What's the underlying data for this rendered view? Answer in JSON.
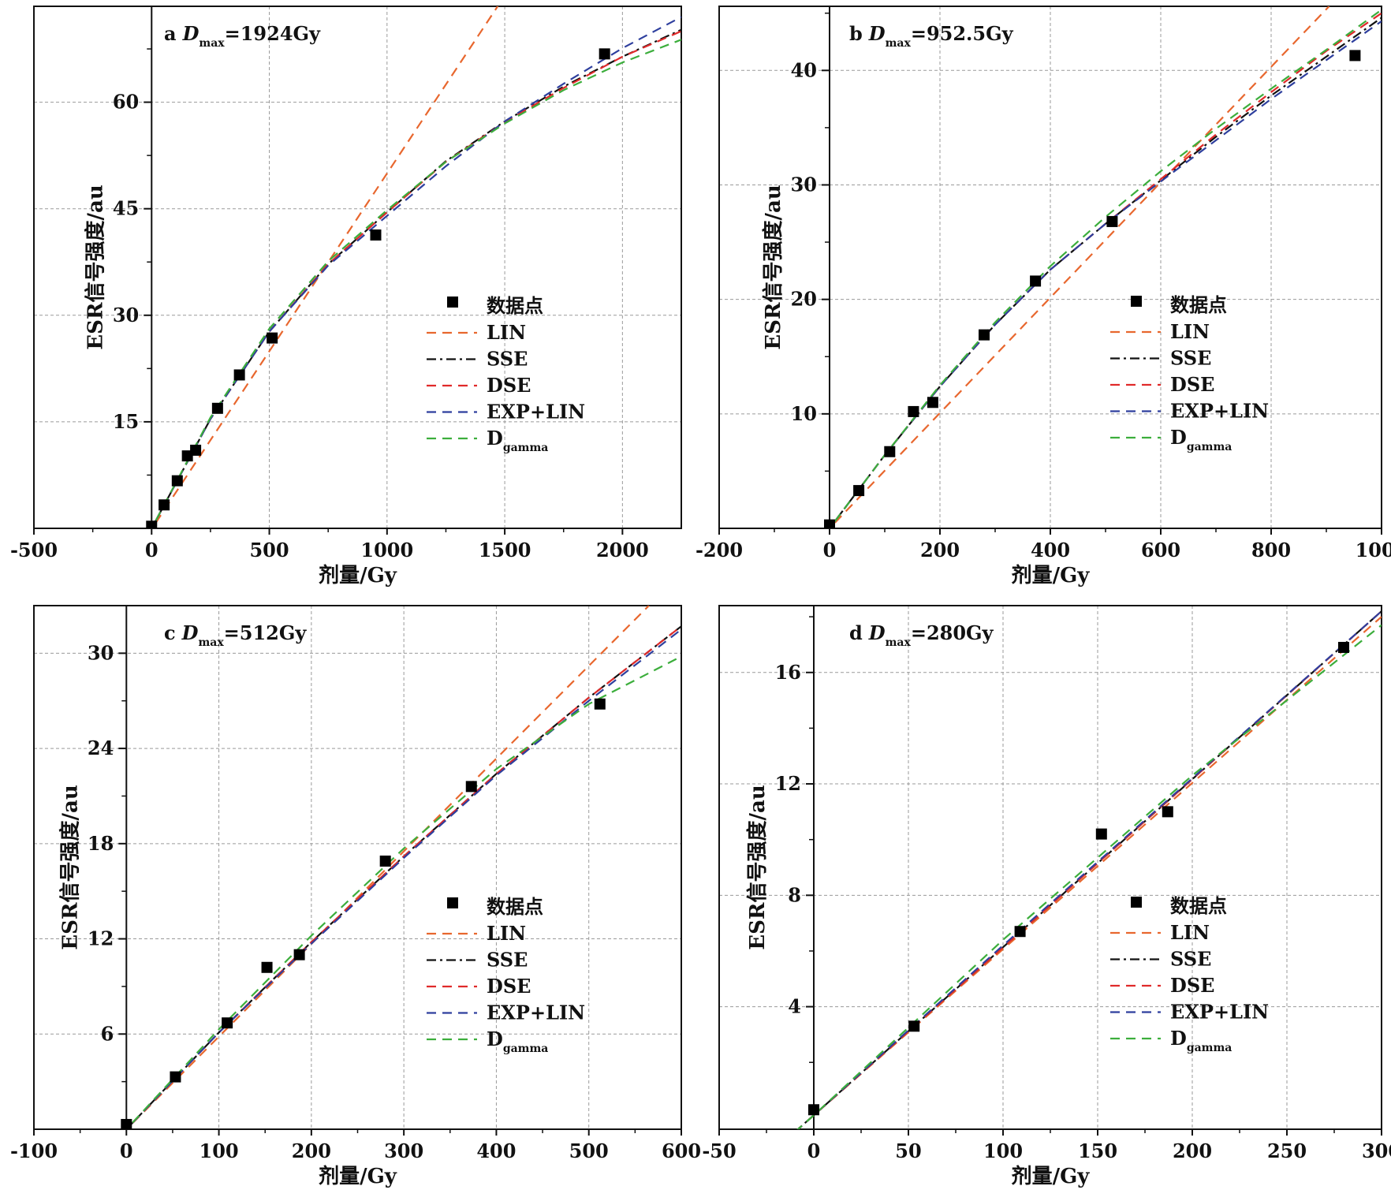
{
  "figure": {
    "series_styles": {
      "LIN": {
        "color": "#e8672e",
        "dash": "12,8"
      },
      "SSE": {
        "color": "#111111",
        "dash": "12,5,3,5"
      },
      "DSE": {
        "color": "#e02a2a",
        "dash": "12,8"
      },
      "EXP+LIN": {
        "color": "#2e3f9e",
        "dash": "12,8"
      },
      "Dgamma": {
        "color": "#3cae3c",
        "dash": "12,8"
      }
    }
  },
  "chart_data": [
    {
      "type": "scatter",
      "panel_letter": "a",
      "title_var": "D",
      "title_sub": "max",
      "title_value": "=1924Gy",
      "xlabel": "剂量/Gy",
      "ylabel": "ESR信号强度/au",
      "xlim": [
        -500,
        2250
      ],
      "ylim": [
        0,
        73.5
      ],
      "xticks": [
        -500,
        0,
        500,
        1000,
        1500,
        2000
      ],
      "yticks": [
        15,
        30,
        45,
        60
      ],
      "grid": true,
      "legend_position": "center-right",
      "legend": {
        "points_label": "数据点",
        "entries": [
          "LIN",
          "SSE",
          "DSE",
          "EXP+LIN",
          "D"
        ],
        "last_sub": "gamma"
      },
      "points": {
        "x": [
          0,
          53,
          109,
          152,
          187,
          280,
          373,
          512,
          952,
          1924
        ],
        "y": [
          0.3,
          3.3,
          6.7,
          10.2,
          11.0,
          16.9,
          21.6,
          26.8,
          41.3,
          66.8
        ]
      },
      "series": [
        {
          "name": "LIN",
          "x": [
            -20,
            1480
          ],
          "y": [
            -1.1,
            74
          ]
        },
        {
          "name": "SSE",
          "x": [
            -15,
            0,
            250,
            500,
            750,
            1000,
            1250,
            1500,
            1750,
            2000,
            2250
          ],
          "y": [
            -0.8,
            0,
            15.4,
            27.7,
            37.2,
            44.5,
            51.7,
            57.3,
            62.2,
            66.4,
            70.2
          ]
        },
        {
          "name": "DSE",
          "x": [
            -15,
            0,
            250,
            500,
            750,
            1000,
            1250,
            1500,
            1750,
            2000,
            2250
          ],
          "y": [
            -0.8,
            0,
            15.4,
            27.7,
            37.2,
            44.5,
            51.6,
            57.2,
            62.0,
            66.4,
            70.0
          ]
        },
        {
          "name": "EXP+LIN",
          "x": [
            -15,
            0,
            250,
            500,
            750,
            1000,
            1250,
            1500,
            1750,
            2000,
            2250
          ],
          "y": [
            -0.8,
            0,
            15.4,
            27.7,
            37.0,
            44.0,
            51.0,
            57.3,
            62.6,
            67.6,
            72.0
          ]
        },
        {
          "name": "Dgamma",
          "x": [
            -15,
            0,
            250,
            500,
            750,
            1000,
            1250,
            1500,
            1750,
            2000,
            2250
          ],
          "y": [
            -0.8,
            0,
            15.6,
            28.1,
            37.6,
            44.8,
            51.6,
            57.0,
            61.7,
            65.6,
            68.8
          ]
        }
      ]
    },
    {
      "type": "scatter",
      "panel_letter": "b",
      "title_var": "D",
      "title_sub": "max",
      "title_value": "=952.5Gy",
      "xlabel": "剂量/Gy",
      "ylabel": "ESR信号强度/au",
      "xlim": [
        -200,
        1000
      ],
      "ylim": [
        0,
        45.6
      ],
      "xticks": [
        -200,
        0,
        200,
        400,
        600,
        800,
        1000
      ],
      "yticks": [
        10,
        20,
        30,
        40
      ],
      "grid": true,
      "legend_position": "center-right",
      "legend": {
        "points_label": "数据点",
        "entries": [
          "LIN",
          "SSE",
          "DSE",
          "EXP+LIN",
          "D"
        ],
        "last_sub": "gamma"
      },
      "points": {
        "x": [
          0,
          53,
          109,
          152,
          187,
          280,
          373,
          512,
          952
        ],
        "y": [
          0.3,
          3.3,
          6.7,
          10.2,
          11.0,
          16.9,
          21.6,
          26.8,
          41.3
        ]
      },
      "series": [
        {
          "name": "LIN",
          "x": [
            -10,
            905
          ],
          "y": [
            -0.5,
            45.6
          ]
        },
        {
          "name": "SSE",
          "x": [
            -8,
            0,
            100,
            200,
            300,
            400,
            500,
            600,
            700,
            800,
            900,
            1000
          ],
          "y": [
            -0.5,
            0,
            6.4,
            12.4,
            17.8,
            22.6,
            26.6,
            30.4,
            34.2,
            37.8,
            41.2,
            44.6
          ]
        },
        {
          "name": "DSE",
          "x": [
            -8,
            0,
            100,
            200,
            300,
            400,
            500,
            600,
            700,
            800,
            900,
            1000
          ],
          "y": [
            -0.5,
            0,
            6.4,
            12.4,
            17.8,
            22.6,
            26.6,
            30.5,
            34.4,
            38.1,
            41.7,
            45.0
          ]
        },
        {
          "name": "EXP+LIN",
          "x": [
            -8,
            0,
            100,
            200,
            300,
            400,
            500,
            600,
            700,
            800,
            900,
            1000
          ],
          "y": [
            -0.5,
            0,
            6.4,
            12.4,
            17.8,
            22.6,
            26.6,
            30.3,
            33.9,
            37.5,
            40.9,
            44.3
          ]
        },
        {
          "name": "Dgamma",
          "x": [
            -8,
            0,
            100,
            200,
            300,
            400,
            500,
            600,
            700,
            800,
            900,
            1000
          ],
          "y": [
            -0.5,
            0,
            6.4,
            12.5,
            18.0,
            22.9,
            27.2,
            31.2,
            34.9,
            38.4,
            41.8,
            45.3
          ]
        }
      ]
    },
    {
      "type": "scatter",
      "panel_letter": "c",
      "title_var": "D",
      "title_sub": "max",
      "title_value": "=512Gy",
      "xlabel": "剂量/Gy",
      "ylabel": "ESR信号强度/au",
      "xlim": [
        -100,
        600
      ],
      "ylim": [
        0,
        33
      ],
      "xticks": [
        -100,
        0,
        100,
        200,
        300,
        400,
        500,
        600
      ],
      "yticks": [
        6,
        12,
        18,
        24,
        30
      ],
      "grid": true,
      "legend_position": "center-right",
      "legend": {
        "points_label": "数据点",
        "entries": [
          "LIN",
          "SSE",
          "DSE",
          "EXP+LIN",
          "D"
        ],
        "last_sub": "gamma"
      },
      "points": {
        "x": [
          0,
          53,
          109,
          152,
          187,
          280,
          373,
          512
        ],
        "y": [
          0.3,
          3.3,
          6.7,
          10.2,
          11.0,
          16.9,
          21.6,
          26.8
        ]
      },
      "series": [
        {
          "name": "LIN",
          "x": [
            -5,
            565
          ],
          "y": [
            -0.3,
            33
          ]
        },
        {
          "name": "SSE",
          "x": [
            -5,
            0,
            100,
            200,
            300,
            400,
            500,
            600
          ],
          "y": [
            -0.3,
            0,
            6.1,
            11.8,
            17.2,
            22.4,
            27.2,
            31.7
          ]
        },
        {
          "name": "DSE",
          "x": [
            -5,
            0,
            100,
            200,
            300,
            400,
            500,
            600
          ],
          "y": [
            -0.3,
            0,
            6.1,
            11.8,
            17.2,
            22.4,
            27.2,
            31.7
          ]
        },
        {
          "name": "EXP+LIN",
          "x": [
            -5,
            0,
            100,
            200,
            300,
            400,
            500,
            600
          ],
          "y": [
            -0.3,
            0,
            6.1,
            11.7,
            17.1,
            22.3,
            27.0,
            31.5
          ]
        },
        {
          "name": "Dgamma",
          "x": [
            -5,
            0,
            100,
            200,
            300,
            400,
            500,
            600
          ],
          "y": [
            -0.3,
            0,
            6.3,
            12.2,
            17.7,
            22.7,
            26.8,
            29.8
          ]
        }
      ]
    },
    {
      "type": "scatter",
      "panel_letter": "d",
      "title_var": "D",
      "title_sub": "max",
      "title_value": "=280Gy",
      "xlabel": "剂量/Gy",
      "ylabel": "ESR信号强度/au",
      "xlim": [
        -50,
        300
      ],
      "ylim": [
        -0.4,
        18.4
      ],
      "xticks": [
        -50,
        0,
        50,
        100,
        150,
        200,
        250,
        300
      ],
      "yticks": [
        4,
        8,
        12,
        16
      ],
      "grid": true,
      "legend_position": "center-right",
      "legend": {
        "points_label": "数据点",
        "entries": [
          "LIN",
          "SSE",
          "DSE",
          "EXP+LIN",
          "D"
        ],
        "last_sub": "gamma"
      },
      "points": {
        "x": [
          0,
          53,
          109,
          152,
          187,
          280
        ],
        "y": [
          0.3,
          3.3,
          6.7,
          10.2,
          11.0,
          16.9
        ]
      },
      "series": [
        {
          "name": "LIN",
          "x": [
            -10,
            300
          ],
          "y": [
            -0.5,
            18.0
          ]
        },
        {
          "name": "SSE",
          "x": [
            -10,
            300
          ],
          "y": [
            -0.5,
            18.2
          ]
        },
        {
          "name": "DSE",
          "x": [
            -10,
            300
          ],
          "y": [
            -0.5,
            18.2
          ]
        },
        {
          "name": "EXP+LIN",
          "x": [
            -10,
            0,
            100,
            200,
            300
          ],
          "y": [
            -0.5,
            0.1,
            6.2,
            12.2,
            18.2
          ]
        },
        {
          "name": "Dgamma",
          "x": [
            -10,
            0,
            100,
            200,
            300
          ],
          "y": [
            -0.5,
            0.1,
            6.4,
            12.3,
            17.7
          ]
        }
      ]
    }
  ]
}
